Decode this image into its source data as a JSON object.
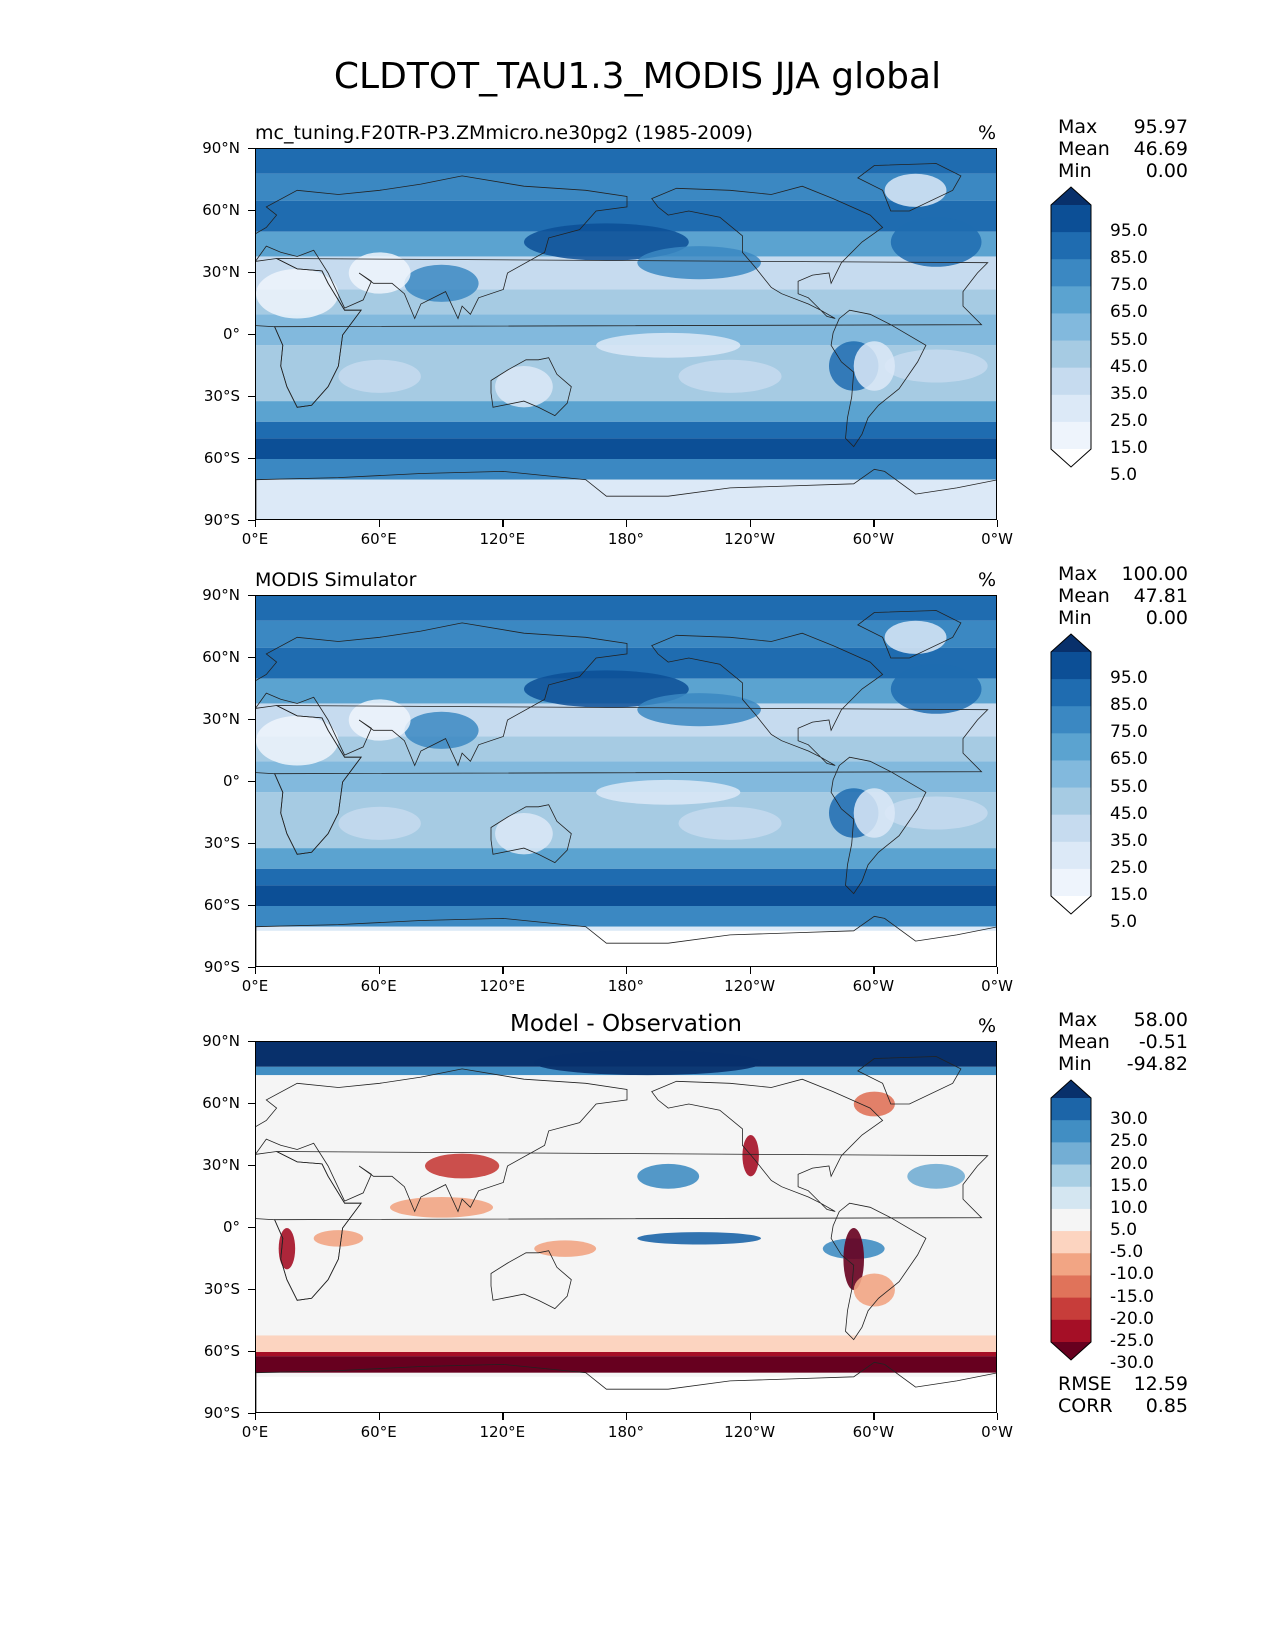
{
  "figure_title": "CLDTOT_TAU1.3_MODIS JJA global",
  "x_ticks": [
    "0°E",
    "60°E",
    "120°E",
    "180°",
    "120°W",
    "60°W",
    "0°W"
  ],
  "y_ticks": [
    "90°N",
    "60°N",
    "30°N",
    "0°",
    "30°S",
    "60°S",
    "90°S"
  ],
  "panels": [
    {
      "left_title": "mc_tuning.F20TR-P3.ZMmicro.ne30pg2 (1985-2009)",
      "center_title": "",
      "units": "%",
      "stats": [
        {
          "label": "Max",
          "value": "95.97"
        },
        {
          "label": "Mean",
          "value": "46.69"
        },
        {
          "label": "Min",
          "value": "0.00"
        }
      ],
      "colorbar_labels": [
        "95.0",
        "85.0",
        "75.0",
        "65.0",
        "55.0",
        "45.0",
        "35.0",
        "25.0",
        "15.0",
        "5.0"
      ],
      "colorbar_colors": [
        "#ffffff",
        "#eef4fc",
        "#dce9f7",
        "#c6dbef",
        "#a6cbe3",
        "#82b9dd",
        "#5ba3d0",
        "#3b88c2",
        "#1f6cb0",
        "#0c4f96",
        "#08306b"
      ],
      "extra_stats": []
    },
    {
      "left_title": "MODIS Simulator",
      "center_title": "",
      "units": "%",
      "stats": [
        {
          "label": "Max",
          "value": "100.00"
        },
        {
          "label": "Mean",
          "value": "47.81"
        },
        {
          "label": "Min",
          "value": "0.00"
        }
      ],
      "colorbar_labels": [
        "95.0",
        "85.0",
        "75.0",
        "65.0",
        "55.0",
        "45.0",
        "35.0",
        "25.0",
        "15.0",
        "5.0"
      ],
      "colorbar_colors": [
        "#ffffff",
        "#eef4fc",
        "#dce9f7",
        "#c6dbef",
        "#a6cbe3",
        "#82b9dd",
        "#5ba3d0",
        "#3b88c2",
        "#1f6cb0",
        "#0c4f96",
        "#08306b"
      ],
      "extra_stats": []
    },
    {
      "left_title": "",
      "center_title": "Model - Observation",
      "units": "%",
      "stats": [
        {
          "label": "Max",
          "value": "58.00"
        },
        {
          "label": "Mean",
          "value": "-0.51"
        },
        {
          "label": "Min",
          "value": "-94.82"
        }
      ],
      "colorbar_labels": [
        "30.0",
        "25.0",
        "20.0",
        "15.0",
        "10.0",
        "5.0",
        "-5.0",
        "-10.0",
        "-15.0",
        "-20.0",
        "-25.0",
        "-30.0"
      ],
      "colorbar_colors": [
        "#67001f",
        "#a50f26",
        "#c73d3a",
        "#e0735a",
        "#f2a584",
        "#fcd4c0",
        "#f5f5f5",
        "#d4e6f1",
        "#a9cfe4",
        "#73aed4",
        "#418ec3",
        "#1c65a8",
        "#08306b"
      ],
      "extra_stats": [
        {
          "label": "RMSE",
          "value": "12.59"
        },
        {
          "label": "CORR",
          "value": "0.85"
        }
      ]
    }
  ],
  "chart_data": [
    {
      "type": "heatmap",
      "title": "mc_tuning.F20TR-P3.ZMmicro.ne30pg2 (1985-2009)",
      "units": "%",
      "x_range": [
        0,
        360
      ],
      "y_range": [
        -90,
        90
      ],
      "levels": [
        5,
        15,
        25,
        35,
        45,
        55,
        65,
        75,
        85,
        95
      ],
      "stats": {
        "max": 95.97,
        "mean": 46.69,
        "min": 0.0
      }
    },
    {
      "type": "heatmap",
      "title": "MODIS Simulator",
      "units": "%",
      "x_range": [
        0,
        360
      ],
      "y_range": [
        -90,
        90
      ],
      "levels": [
        5,
        15,
        25,
        35,
        45,
        55,
        65,
        75,
        85,
        95
      ],
      "stats": {
        "max": 100.0,
        "mean": 47.81,
        "min": 0.0
      }
    },
    {
      "type": "heatmap",
      "title": "Model - Observation",
      "units": "%",
      "x_range": [
        0,
        360
      ],
      "y_range": [
        -90,
        90
      ],
      "levels": [
        -30,
        -25,
        -20,
        -15,
        -10,
        -5,
        5,
        10,
        15,
        20,
        25,
        30
      ],
      "stats": {
        "max": 58.0,
        "mean": -0.51,
        "min": -94.82,
        "rmse": 12.59,
        "corr": 0.85
      }
    }
  ]
}
